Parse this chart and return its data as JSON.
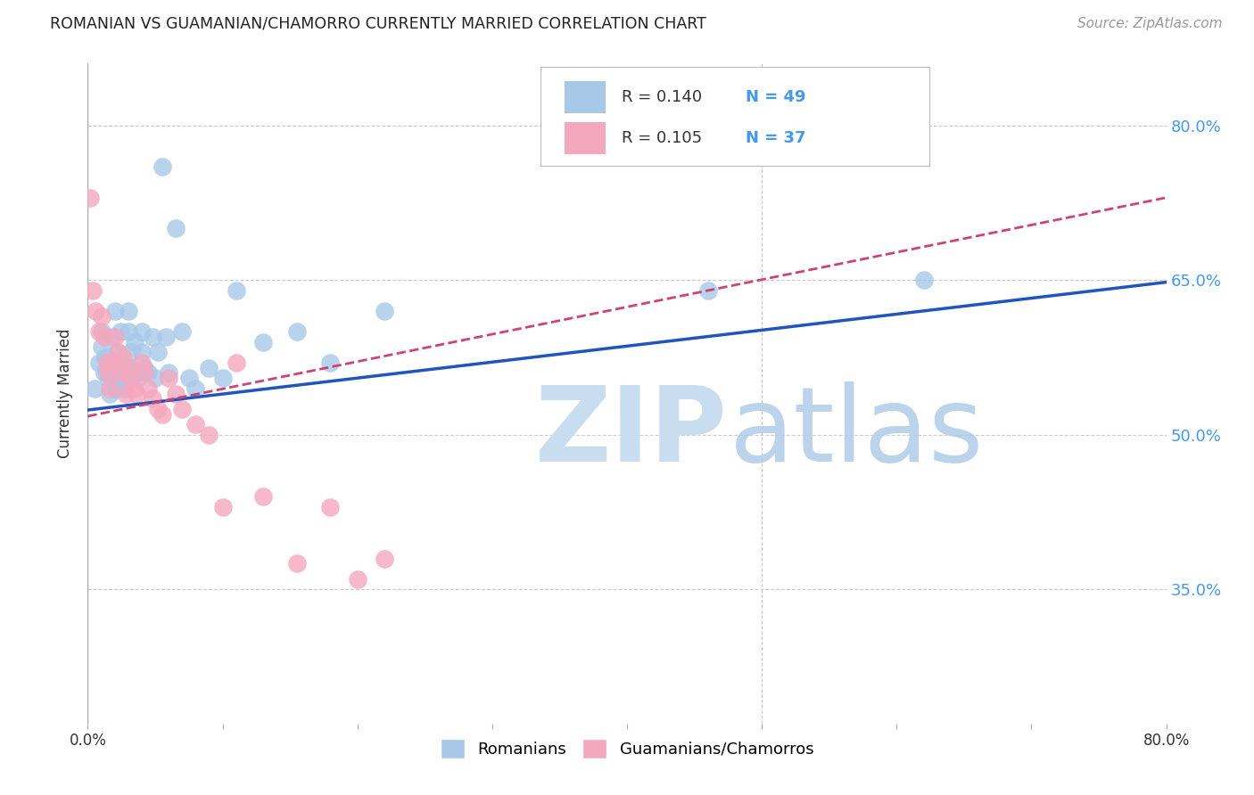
{
  "title": "ROMANIAN VS GUAMANIAN/CHAMORRO CURRENTLY MARRIED CORRELATION CHART",
  "source": "Source: ZipAtlas.com",
  "ylabel": "Currently Married",
  "xlim": [
    0.0,
    0.8
  ],
  "ylim": [
    0.22,
    0.86
  ],
  "yticks": [
    0.35,
    0.5,
    0.65,
    0.8
  ],
  "ytick_labels": [
    "35.0%",
    "50.0%",
    "65.0%",
    "80.0%"
  ],
  "xticks": [
    0.0,
    0.1,
    0.2,
    0.3,
    0.4,
    0.5,
    0.6,
    0.7,
    0.8
  ],
  "xtick_labels": [
    "0.0%",
    "",
    "",
    "",
    "",
    "",
    "",
    "",
    "80.0%"
  ],
  "blue_color": "#a8c8e8",
  "pink_color": "#f4a8be",
  "trend_blue": "#2255bb",
  "trend_pink": "#cc4477",
  "axis_label_color": "#4499ee",
  "title_color": "#222222",
  "background_color": "#ffffff",
  "grid_color": "#cccccc",
  "blue_scatter_x": [
    0.005,
    0.008,
    0.01,
    0.01,
    0.012,
    0.013,
    0.014,
    0.015,
    0.016,
    0.018,
    0.02,
    0.02,
    0.022,
    0.022,
    0.024,
    0.025,
    0.026,
    0.027,
    0.028,
    0.03,
    0.03,
    0.032,
    0.033,
    0.035,
    0.036,
    0.037,
    0.04,
    0.04,
    0.042,
    0.045,
    0.048,
    0.05,
    0.052,
    0.055,
    0.058,
    0.06,
    0.065,
    0.07,
    0.075,
    0.08,
    0.09,
    0.1,
    0.11,
    0.13,
    0.155,
    0.18,
    0.22,
    0.46,
    0.62
  ],
  "blue_scatter_y": [
    0.545,
    0.57,
    0.585,
    0.6,
    0.56,
    0.575,
    0.56,
    0.555,
    0.54,
    0.595,
    0.62,
    0.545,
    0.58,
    0.555,
    0.6,
    0.57,
    0.555,
    0.545,
    0.565,
    0.6,
    0.62,
    0.58,
    0.565,
    0.59,
    0.56,
    0.555,
    0.58,
    0.6,
    0.565,
    0.56,
    0.595,
    0.555,
    0.58,
    0.76,
    0.595,
    0.56,
    0.7,
    0.6,
    0.555,
    0.545,
    0.565,
    0.555,
    0.64,
    0.59,
    0.6,
    0.57,
    0.62,
    0.64,
    0.65
  ],
  "pink_scatter_x": [
    0.002,
    0.004,
    0.006,
    0.008,
    0.01,
    0.012,
    0.014,
    0.015,
    0.016,
    0.018,
    0.02,
    0.022,
    0.024,
    0.026,
    0.028,
    0.03,
    0.032,
    0.034,
    0.036,
    0.04,
    0.042,
    0.045,
    0.048,
    0.052,
    0.055,
    0.06,
    0.065,
    0.07,
    0.08,
    0.09,
    0.1,
    0.11,
    0.13,
    0.155,
    0.18,
    0.2,
    0.22
  ],
  "pink_scatter_y": [
    0.73,
    0.64,
    0.62,
    0.6,
    0.615,
    0.595,
    0.57,
    0.56,
    0.545,
    0.57,
    0.595,
    0.58,
    0.56,
    0.575,
    0.54,
    0.565,
    0.555,
    0.545,
    0.54,
    0.57,
    0.56,
    0.545,
    0.535,
    0.525,
    0.52,
    0.555,
    0.54,
    0.525,
    0.51,
    0.5,
    0.43,
    0.57,
    0.44,
    0.375,
    0.43,
    0.36,
    0.38
  ],
  "blue_trendline_x": [
    0.0,
    0.8
  ],
  "blue_trendline_y": [
    0.524,
    0.648
  ],
  "pink_trendline_x": [
    0.0,
    0.8
  ],
  "pink_trendline_y": [
    0.518,
    0.73
  ],
  "legend_r1": "R = 0.140",
  "legend_n1": "N = 49",
  "legend_r2": "R = 0.105",
  "legend_n2": "N = 37",
  "watermark_zip_color": "#c8ddf0",
  "watermark_atlas_color": "#b0cce8"
}
